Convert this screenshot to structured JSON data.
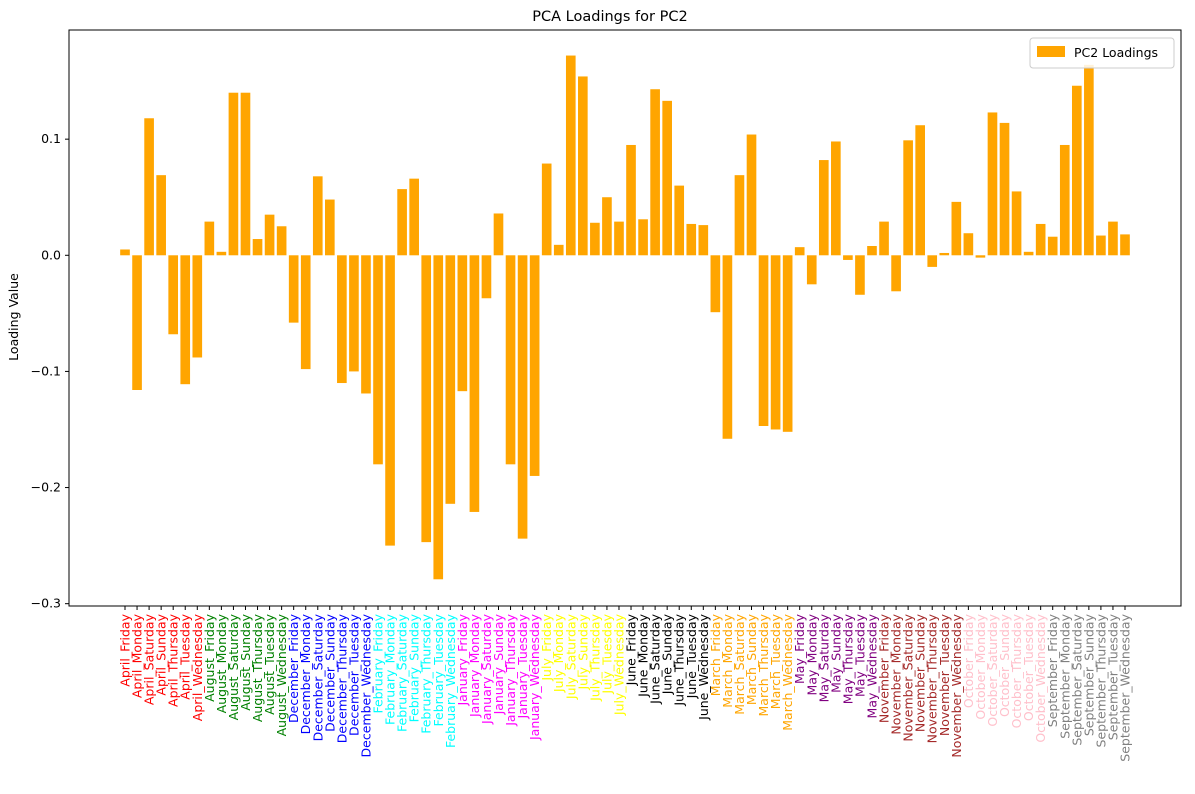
{
  "chart_data": {
    "type": "bar",
    "title": "PCA Loadings for PC2",
    "xlabel": "",
    "ylabel": "Loading Value",
    "ylim": [
      -0.302,
      0.194
    ],
    "yticks": [
      -0.3,
      -0.2,
      -0.1,
      0.0,
      0.1
    ],
    "ytick_labels": [
      "−0.3",
      "−0.2",
      "−0.1",
      "0.0",
      "0.1"
    ],
    "grid": false,
    "legend": {
      "position": "top-right",
      "entries": [
        "PC2 Loadings"
      ]
    },
    "bar_color": "#ffa500",
    "series": [
      {
        "name": "PC2 Loadings",
        "values": [
          0.005,
          -0.116,
          0.118,
          0.069,
          -0.068,
          -0.111,
          -0.088,
          0.029,
          0.003,
          0.14,
          0.14,
          0.014,
          0.035,
          0.025,
          -0.058,
          -0.098,
          0.068,
          0.048,
          -0.11,
          -0.1,
          -0.119,
          -0.18,
          -0.25,
          0.057,
          0.066,
          -0.247,
          -0.279,
          -0.214,
          -0.117,
          -0.221,
          -0.037,
          0.036,
          -0.18,
          -0.244,
          -0.19,
          0.079,
          0.009,
          0.172,
          0.154,
          0.028,
          0.05,
          0.029,
          0.095,
          0.031,
          0.143,
          0.133,
          0.06,
          0.027,
          0.026,
          -0.049,
          -0.158,
          0.069,
          0.104,
          -0.147,
          -0.15,
          -0.152,
          0.007,
          -0.025,
          0.082,
          0.098,
          -0.004,
          -0.034,
          0.008,
          0.029,
          -0.031,
          0.099,
          0.112,
          -0.01,
          0.002,
          0.046,
          0.019,
          -0.002,
          0.123,
          0.114,
          0.055,
          0.003,
          0.027,
          0.016,
          0.095,
          0.146,
          0.164,
          0.017,
          0.029,
          0.018
        ]
      }
    ],
    "categories": [
      "April_Friday",
      "April_Monday",
      "April_Saturday",
      "April_Sunday",
      "April_Thursday",
      "April_Tuesday",
      "April_Wednesday",
      "August_Friday",
      "August_Monday",
      "August_Saturday",
      "August_Sunday",
      "August_Thursday",
      "August_Tuesday",
      "August_Wednesday",
      "December_Friday",
      "December_Monday",
      "December_Saturday",
      "December_Sunday",
      "December_Thursday",
      "December_Tuesday",
      "December_Wednesday",
      "February_Friday",
      "February_Monday",
      "February_Saturday",
      "February_Sunday",
      "February_Thursday",
      "February_Tuesday",
      "February_Wednesday",
      "January_Friday",
      "January_Monday",
      "January_Saturday",
      "January_Sunday",
      "January_Thursday",
      "January_Tuesday",
      "January_Wednesday",
      "July_Friday",
      "July_Monday",
      "July_Saturday",
      "July_Sunday",
      "July_Thursday",
      "July_Tuesday",
      "July_Wednesday",
      "June_Friday",
      "June_Monday",
      "June_Saturday",
      "June_Sunday",
      "June_Thursday",
      "June_Tuesday",
      "June_Wednesday",
      "March_Friday",
      "March_Monday",
      "March_Saturday",
      "March_Sunday",
      "March_Thursday",
      "March_Tuesday",
      "March_Wednesday",
      "May_Friday",
      "May_Monday",
      "May_Saturday",
      "May_Sunday",
      "May_Thursday",
      "May_Tuesday",
      "May_Wednesday",
      "November_Friday",
      "November_Monday",
      "November_Saturday",
      "November_Sunday",
      "November_Thursday",
      "November_Tuesday",
      "November_Wednesday",
      "October_Friday",
      "October_Monday",
      "October_Saturday",
      "October_Sunday",
      "October_Thursday",
      "October_Tuesday",
      "October_Wednesday",
      "September_Friday",
      "September_Monday",
      "September_Saturday",
      "September_Sunday",
      "September_Thursday",
      "September_Tuesday",
      "September_Wednesday"
    ],
    "category_label_colors": {
      "April": "#ff0000",
      "August": "#008000",
      "December": "#0000ff",
      "February": "#00ffff",
      "January": "#ff00ff",
      "July": "#ffff00",
      "June": "#000000",
      "March": "#ffa500",
      "May": "#800080",
      "November": "#a52a2a",
      "October": "#ffc0cb",
      "September": "#808080"
    }
  }
}
